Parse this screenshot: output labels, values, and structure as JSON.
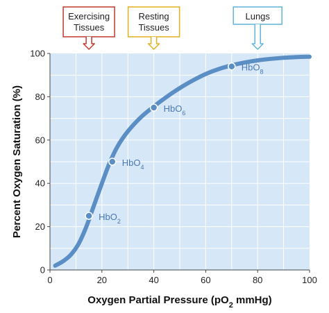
{
  "chart_data": {
    "type": "line",
    "xlabel": "Oxygen Partial Pressure (pO",
    "xlabel_sub": "2",
    "xlabel_tail": " mmHg)",
    "ylabel": "Percent Oxygen Saturation (%)",
    "xlim": [
      0,
      100
    ],
    "ylim": [
      0,
      100
    ],
    "x_ticks": [
      0,
      20,
      40,
      60,
      80,
      100
    ],
    "y_ticks": [
      0,
      20,
      40,
      60,
      80,
      100
    ],
    "grid": true,
    "colors": {
      "plot_bg": "#d6e7f7",
      "grid": "#ffffff",
      "curve": "#5b8ec4",
      "point_label": "#4a78b4",
      "exercising": "#c0392b",
      "resting": "#e0b020",
      "lungs": "#5fb4d8"
    },
    "series": [
      {
        "x": [
          2,
          5,
          8,
          11,
          14,
          17,
          20,
          23,
          26,
          30,
          35,
          40,
          45,
          50,
          55,
          60,
          65,
          70,
          75,
          80,
          85,
          90,
          95,
          100
        ],
        "values": [
          2,
          4,
          7,
          12,
          20,
          30,
          40,
          49.5,
          57,
          64,
          70.5,
          75.5,
          80,
          84,
          87.5,
          90.5,
          92.8,
          94.5,
          95.8,
          96.8,
          97.5,
          98,
          98.3,
          98.5
        ]
      }
    ],
    "points": [
      {
        "label": "HbO",
        "sub": "2",
        "x": 15,
        "y": 25
      },
      {
        "label": "HbO",
        "sub": "4",
        "x": 24,
        "y": 50
      },
      {
        "label": "HbO",
        "sub": "6",
        "x": 40,
        "y": 75
      },
      {
        "label": "HbO",
        "sub": "8",
        "x": 70,
        "y": 94
      }
    ],
    "annotations": [
      {
        "key": "exercising",
        "lines": [
          "Exercising",
          "Tissues"
        ],
        "x": 15
      },
      {
        "key": "resting",
        "lines": [
          "Resting",
          "Tissues"
        ],
        "x": 40
      },
      {
        "key": "lungs",
        "lines": [
          "Lungs"
        ],
        "x": 80
      }
    ]
  }
}
